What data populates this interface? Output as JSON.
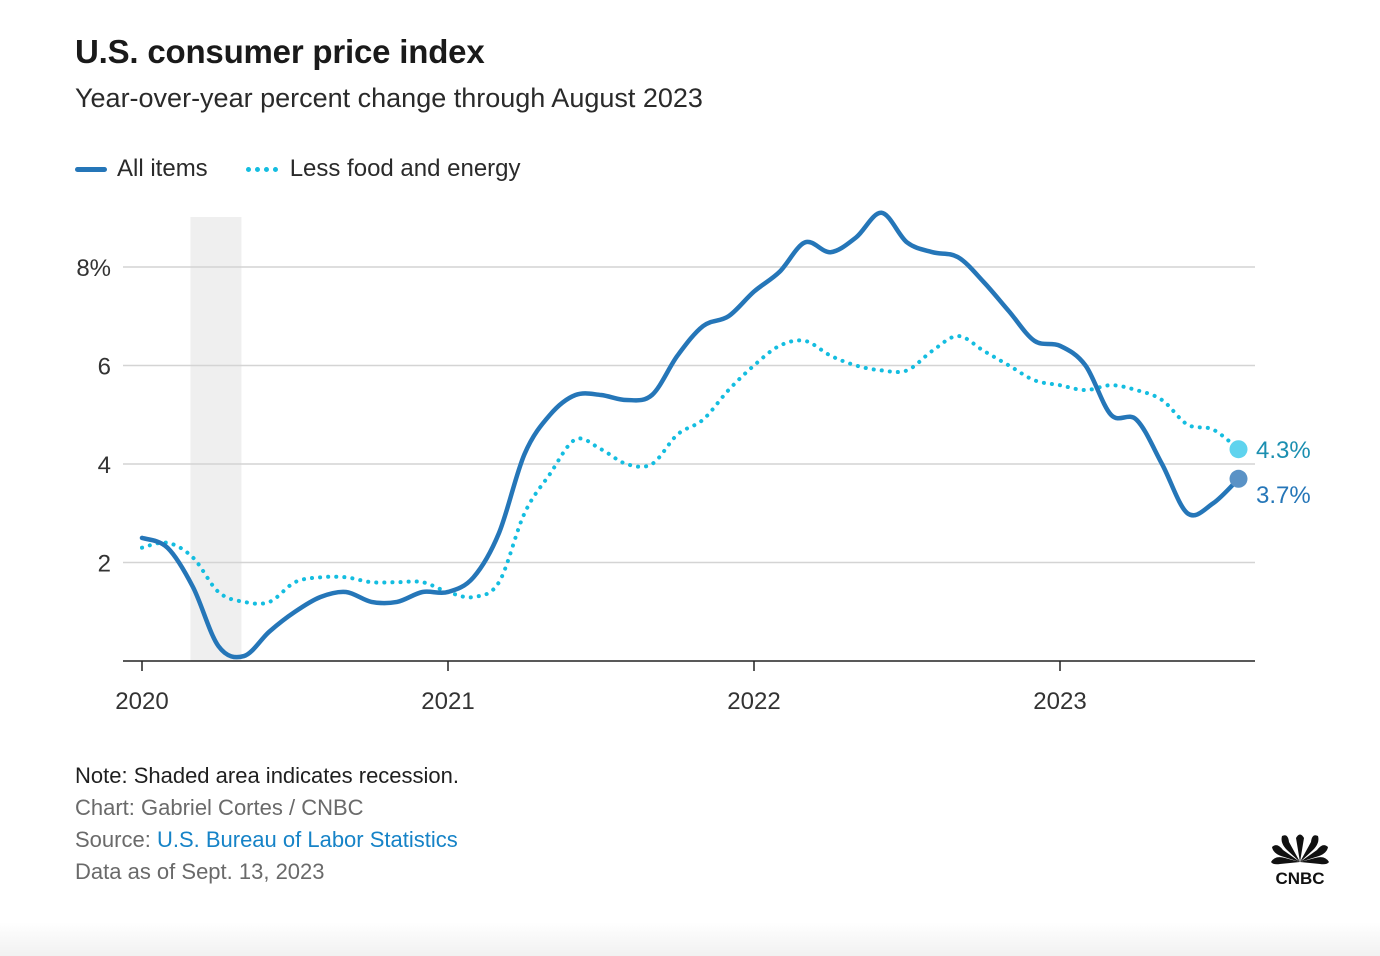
{
  "header": {
    "title": "U.S. consumer price index",
    "subtitle": "Year-over-year percent change through August 2023"
  },
  "legend": {
    "all_items": "All items",
    "core": "Less food and energy"
  },
  "notes": {
    "note": "Note: Shaded area indicates recession.",
    "chart_credit": "Chart: Gabriel Cortes / CNBC",
    "source_label": "Source: ",
    "source_link": "U.S. Bureau of Labor Statistics",
    "data_as_of": "Data as of Sept. 13, 2023"
  },
  "logo": {
    "text": "CNBC",
    "icon": "peacock-icon"
  },
  "chart_data": {
    "type": "line",
    "title": "U.S. consumer price index",
    "subtitle": "Year-over-year percent change through August 2023",
    "ylim": [
      0,
      9
    ],
    "y_ticks": [
      {
        "value": 2,
        "label": "2"
      },
      {
        "value": 4,
        "label": "4"
      },
      {
        "value": 6,
        "label": "6"
      },
      {
        "value": 8,
        "label": "8%"
      }
    ],
    "x_ticks": [
      {
        "value": 0,
        "label": "2020"
      },
      {
        "value": 12,
        "label": "2021"
      },
      {
        "value": 24,
        "label": "2022"
      },
      {
        "value": 36,
        "label": "2023"
      }
    ],
    "x_unit": "months since Jan 2020",
    "grid": true,
    "legend_position": "top-left",
    "recession": {
      "start": 1.9,
      "end": 3.9
    },
    "colors": {
      "all_items": "#2576b8",
      "core": "#14bde0",
      "core_end_marker": "#5fd3ee",
      "recession": "#efefef",
      "grid": "#d4d4d4"
    },
    "series": [
      {
        "name": "All items",
        "style": "solid",
        "end_label": "3.7%",
        "values": [
          2.5,
          2.3,
          1.5,
          0.3,
          0.1,
          0.6,
          1.0,
          1.3,
          1.4,
          1.2,
          1.2,
          1.4,
          1.4,
          1.7,
          2.6,
          4.2,
          5.0,
          5.4,
          5.4,
          5.3,
          5.4,
          6.2,
          6.8,
          7.0,
          7.5,
          7.9,
          8.5,
          8.3,
          8.6,
          9.1,
          8.5,
          8.3,
          8.2,
          7.7,
          7.1,
          6.5,
          6.4,
          6.0,
          5.0,
          4.9,
          4.0,
          3.0,
          3.2,
          3.7
        ]
      },
      {
        "name": "Less food and energy",
        "style": "dotted",
        "end_label": "4.3%",
        "values": [
          2.3,
          2.4,
          2.1,
          1.4,
          1.2,
          1.2,
          1.6,
          1.7,
          1.7,
          1.6,
          1.6,
          1.6,
          1.4,
          1.3,
          1.6,
          3.0,
          3.8,
          4.5,
          4.3,
          4.0,
          4.0,
          4.6,
          4.9,
          5.5,
          6.0,
          6.4,
          6.5,
          6.2,
          6.0,
          5.9,
          5.9,
          6.3,
          6.6,
          6.3,
          6.0,
          5.7,
          5.6,
          5.5,
          5.6,
          5.5,
          5.3,
          4.8,
          4.7,
          4.3
        ]
      }
    ]
  }
}
